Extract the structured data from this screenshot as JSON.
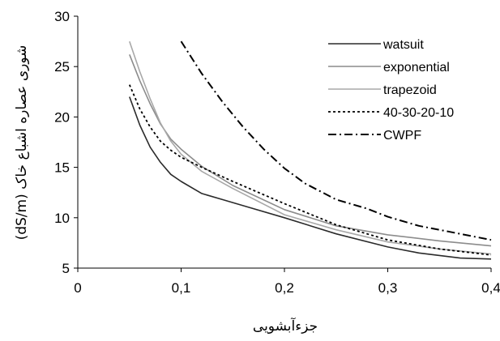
{
  "chart_data": {
    "type": "line",
    "title": "",
    "xlabel": "جزءآبشويی",
    "ylabel": "(dS/m) شوری عصاره اشباع خاک",
    "xlim": [
      0,
      0.4
    ],
    "ylim": [
      5,
      30
    ],
    "x_ticks": [
      0,
      0.1,
      0.2,
      0.3,
      0.4
    ],
    "x_tick_labels": [
      "0",
      "0,1",
      "0,2",
      "0,3",
      "0,4"
    ],
    "y_ticks": [
      5,
      10,
      15,
      20,
      25,
      30
    ],
    "y_tick_labels": [
      "5",
      "10",
      "15",
      "20",
      "25",
      "30"
    ],
    "grid": false,
    "legend_position": "top-right",
    "series": [
      {
        "name": "watsuit",
        "color": "#2a2a2a",
        "dash": "solid",
        "x": [
          0.05,
          0.06,
          0.07,
          0.08,
          0.09,
          0.1,
          0.12,
          0.14,
          0.16,
          0.2,
          0.25,
          0.3,
          0.33,
          0.37,
          0.4
        ],
        "y": [
          22.0,
          19.2,
          17.0,
          15.5,
          14.3,
          13.6,
          12.4,
          11.8,
          11.2,
          10.0,
          8.4,
          7.1,
          6.5,
          6.0,
          5.9
        ]
      },
      {
        "name": "exponential",
        "color": "#8c8c8c",
        "dash": "solid",
        "x": [
          0.05,
          0.06,
          0.07,
          0.08,
          0.09,
          0.1,
          0.12,
          0.15,
          0.2,
          0.25,
          0.3,
          0.35,
          0.4
        ],
        "y": [
          26.2,
          23.6,
          21.3,
          19.3,
          17.8,
          16.8,
          15.1,
          13.2,
          10.8,
          9.2,
          8.3,
          7.7,
          7.2
        ]
      },
      {
        "name": "trapezoid",
        "color": "#a8a8a8",
        "dash": "solid",
        "x": [
          0.05,
          0.06,
          0.07,
          0.08,
          0.09,
          0.1,
          0.12,
          0.15,
          0.2,
          0.25,
          0.3,
          0.35,
          0.4
        ],
        "y": [
          27.5,
          24.5,
          21.8,
          19.4,
          17.6,
          16.3,
          14.6,
          12.9,
          10.3,
          8.8,
          7.6,
          6.9,
          6.4
        ]
      },
      {
        "name": "40-30-20-10",
        "color": "#000000",
        "dash": "dotted",
        "x": [
          0.05,
          0.06,
          0.07,
          0.08,
          0.09,
          0.1,
          0.12,
          0.15,
          0.2,
          0.25,
          0.3,
          0.35,
          0.4
        ],
        "y": [
          23.2,
          20.8,
          19.0,
          17.6,
          16.7,
          16.0,
          15.0,
          13.6,
          11.4,
          9.3,
          7.8,
          6.9,
          6.3
        ]
      },
      {
        "name": "CWPF",
        "color": "#000000",
        "dash": "dashdot",
        "x": [
          0.1,
          0.12,
          0.14,
          0.16,
          0.18,
          0.2,
          0.22,
          0.25,
          0.28,
          0.3,
          0.33,
          0.36,
          0.4
        ],
        "y": [
          27.5,
          24.3,
          21.5,
          19.0,
          16.8,
          14.9,
          13.4,
          11.8,
          10.9,
          10.1,
          9.2,
          8.6,
          7.8
        ]
      }
    ]
  }
}
